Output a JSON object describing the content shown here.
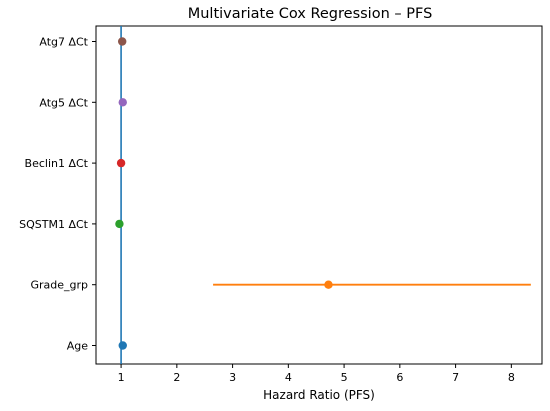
{
  "chart_data": {
    "type": "scatter",
    "title": "Multivariate Cox Regression – PFS",
    "xlabel": "Hazard Ratio (PFS)",
    "ylabel": "",
    "xlim": [
      0.55,
      8.55
    ],
    "xticks": [
      1,
      2,
      3,
      4,
      5,
      6,
      7,
      8
    ],
    "grid": false,
    "reference_line": {
      "x": 1,
      "color": "#1f77b4"
    },
    "variables": [
      {
        "label": "Atg7 ΔCt",
        "hr": 1.02,
        "ci": [
          1.0,
          1.04
        ],
        "color": "#8c564b"
      },
      {
        "label": "Atg5 ΔCt",
        "hr": 1.03,
        "ci": [
          1.01,
          1.05
        ],
        "color": "#9467bd"
      },
      {
        "label": "Beclin1 ΔCt",
        "hr": 1.0,
        "ci": [
          0.98,
          1.02
        ],
        "color": "#d62728"
      },
      {
        "label": "SQSTM1 ΔCt",
        "hr": 0.97,
        "ci": [
          0.95,
          0.99
        ],
        "color": "#2ca02c"
      },
      {
        "label": "Grade_grp",
        "hr": 4.72,
        "ci": [
          2.65,
          8.35
        ],
        "color": "#ff7f0e"
      },
      {
        "label": "Age",
        "hr": 1.03,
        "ci": [
          1.01,
          1.05
        ],
        "color": "#1f77b4"
      }
    ]
  }
}
